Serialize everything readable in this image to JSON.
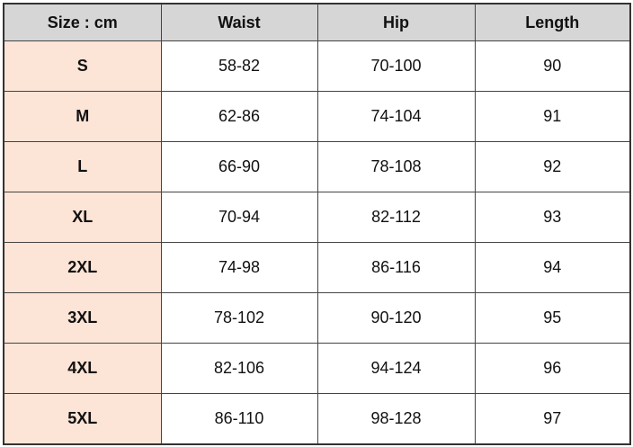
{
  "table": {
    "header": [
      "Size : cm",
      "Waist",
      "Hip",
      "Length"
    ],
    "rows": [
      [
        "S",
        "58-82",
        "70-100",
        90
      ],
      [
        "M",
        "62-86",
        "74-104",
        91
      ],
      [
        "L",
        "66-90",
        "78-108",
        92
      ],
      [
        "XL",
        "70-94",
        "82-112",
        93
      ],
      [
        "2XL",
        "74-98",
        "86-116",
        94
      ],
      [
        "3XL",
        "78-102",
        "90-120",
        95
      ],
      [
        "4XL",
        "82-106",
        "94-124",
        96
      ],
      [
        "5XL",
        "86-110",
        "98-128",
        97
      ]
    ]
  }
}
